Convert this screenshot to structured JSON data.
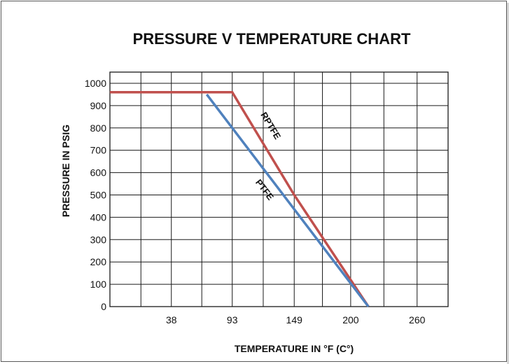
{
  "chart_data": {
    "type": "line",
    "title": "PRESSURE V TEMPERATURE  CHART",
    "xlabel": "TEMPERATURE IN °F (C°)",
    "ylabel": "PRESSURE IN PSIG",
    "x_ticks": [
      "38",
      "93",
      "149",
      "200",
      "260"
    ],
    "y_ticks": [
      "1000",
      "900",
      "800",
      "700",
      "600",
      "500",
      "400",
      "300",
      "200",
      "100",
      "0"
    ],
    "xlim": [
      -17.5,
      288
    ],
    "ylim": [
      0,
      1050
    ],
    "grid": true,
    "series": [
      {
        "name": "RPTFE",
        "color": "#c0504d",
        "points": [
          [
            -17.5,
            960
          ],
          [
            93,
            960
          ],
          [
            149,
            500
          ],
          [
            216,
            0
          ]
        ]
      },
      {
        "name": "PTFE",
        "color": "#4f81bd",
        "points": [
          [
            70,
            950
          ],
          [
            216,
            0
          ]
        ]
      }
    ]
  }
}
